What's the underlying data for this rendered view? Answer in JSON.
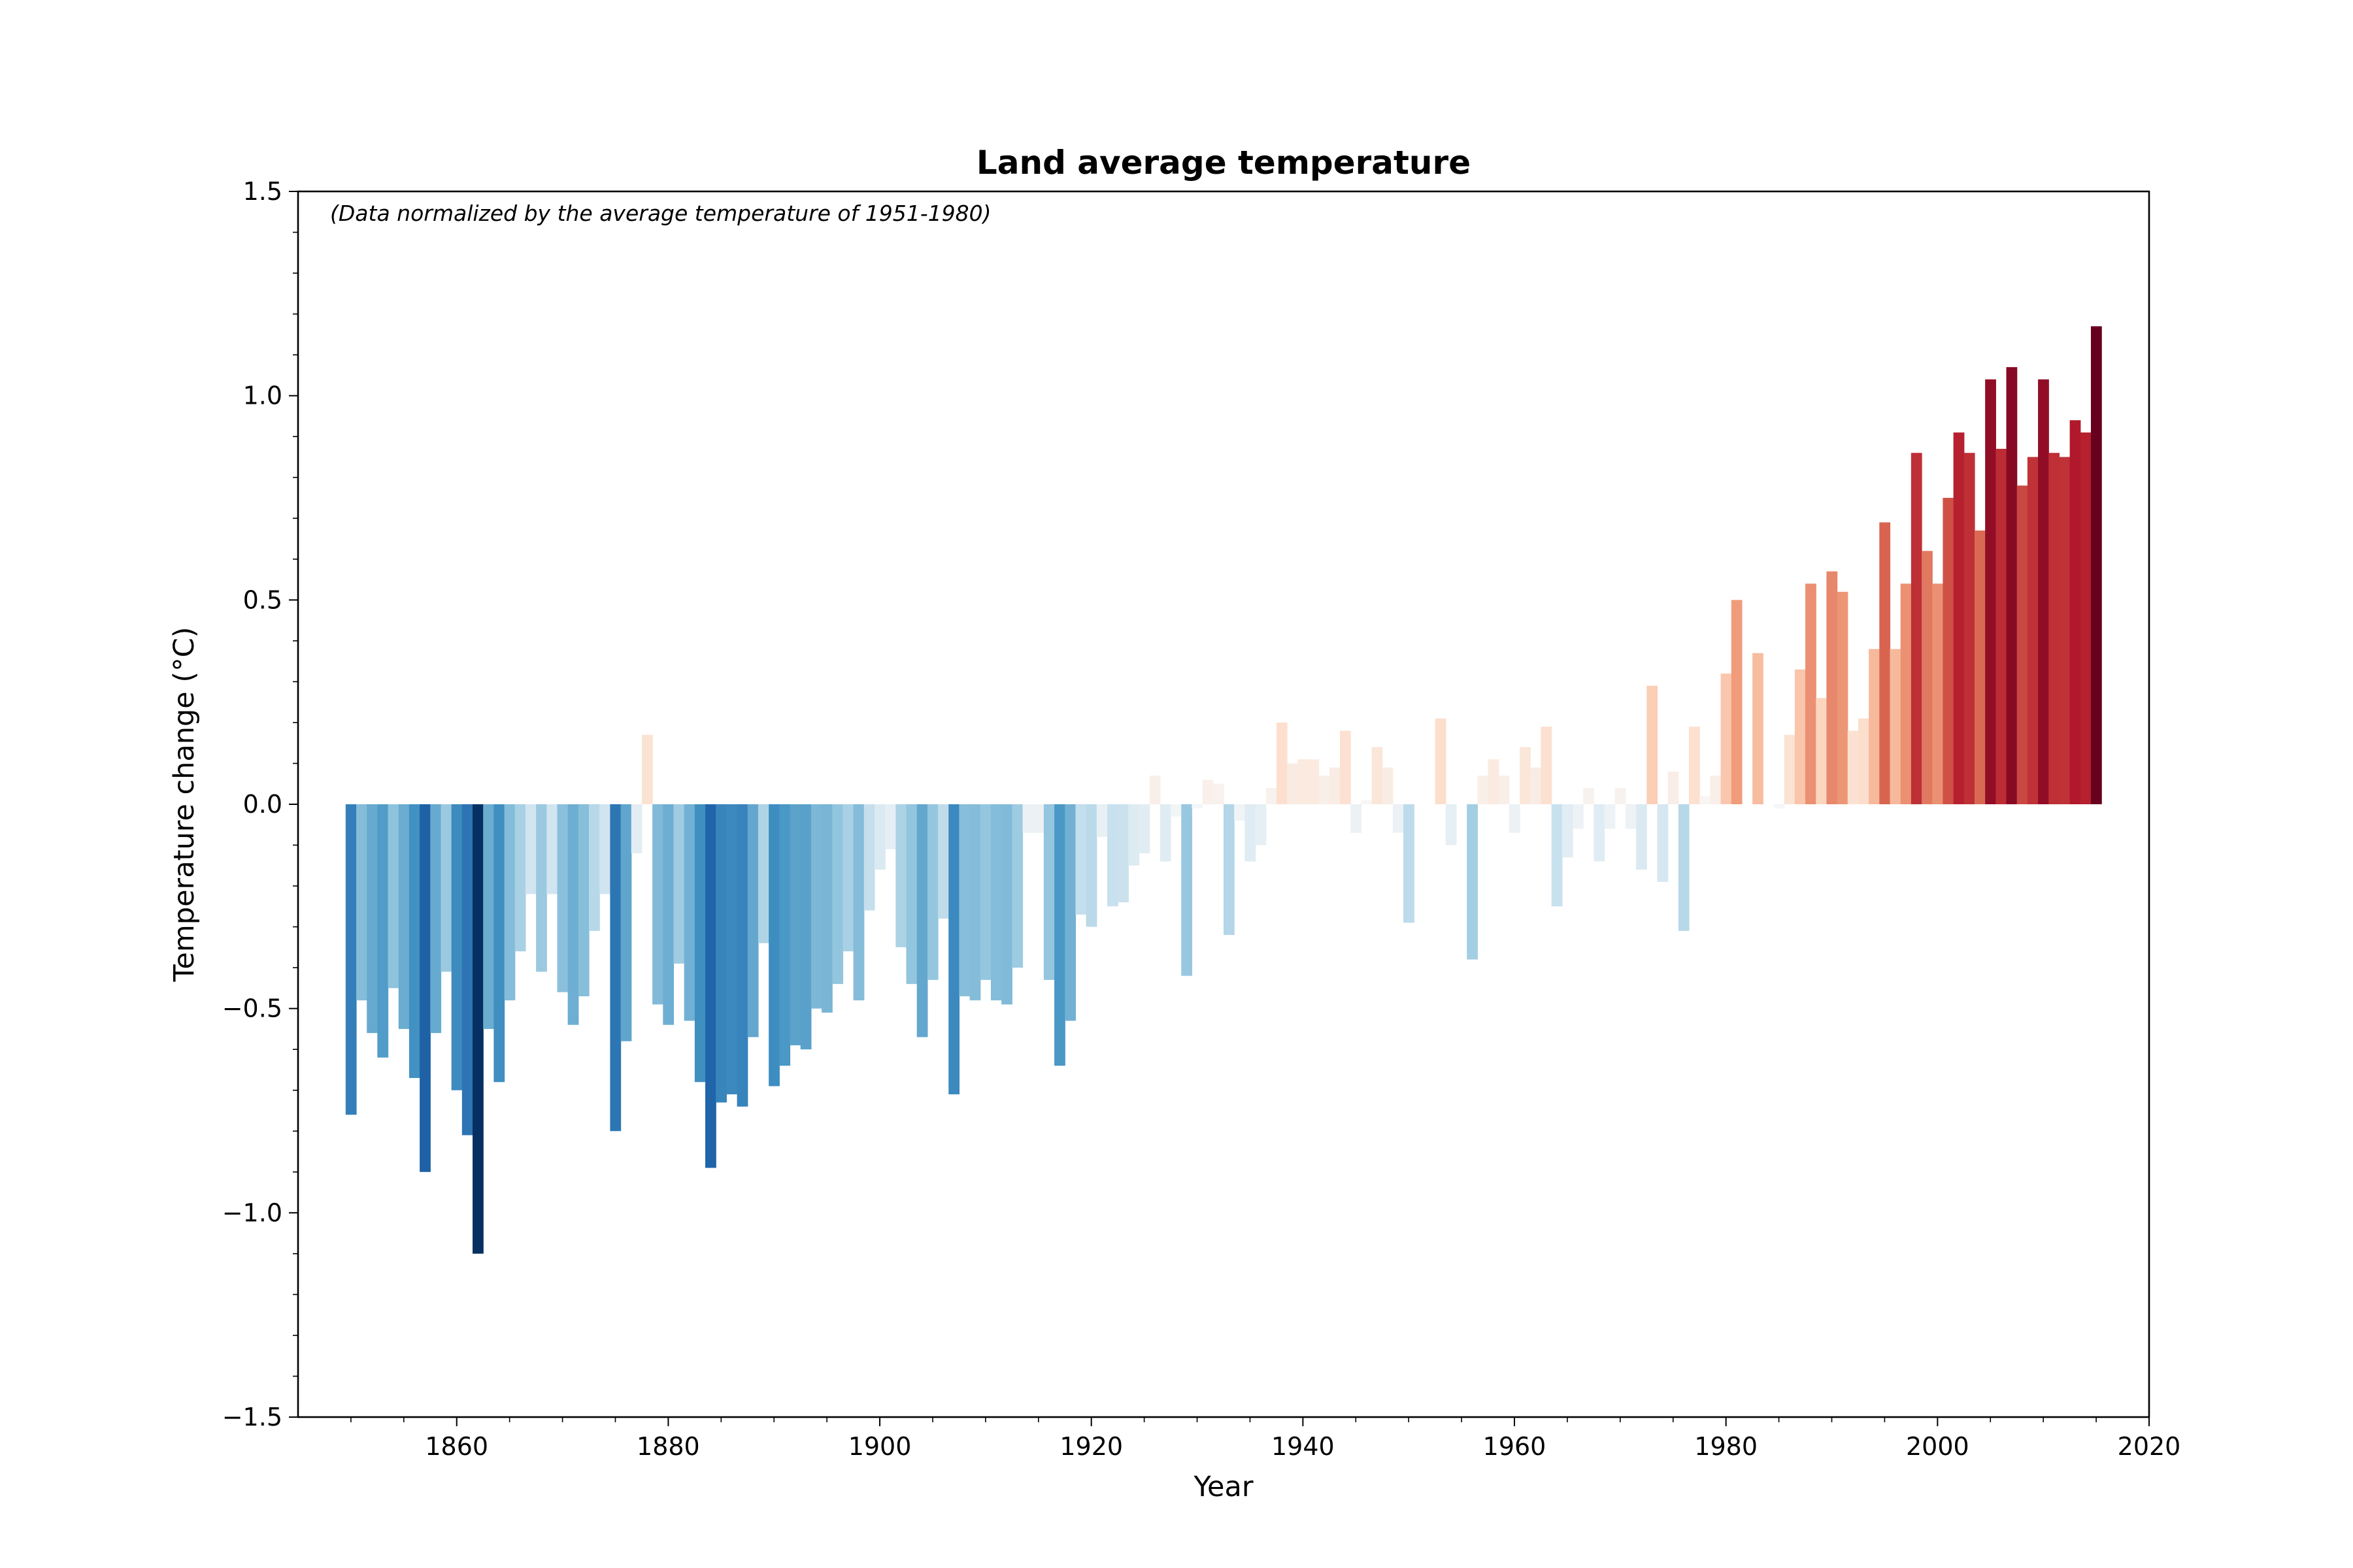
{
  "chart_data": {
    "type": "bar",
    "title": "Land average temperature",
    "annotation": "(Data normalized by the average temperature of 1951-1980)",
    "xlabel": "Year",
    "ylabel": "Temperature change (°C)",
    "xlim": [
      1845,
      2020
    ],
    "ylim": [
      -1.5,
      1.5
    ],
    "xticks": [
      1860,
      1880,
      1900,
      1920,
      1940,
      1960,
      1980,
      2000,
      2020
    ],
    "xtick_labels": [
      "1860",
      "1880",
      "1900",
      "1920",
      "1940",
      "1960",
      "1980",
      "2000",
      "2020"
    ],
    "yticks": [
      -1.5,
      -1.0,
      -0.5,
      0.0,
      0.5,
      1.0,
      1.5
    ],
    "ytick_labels": [
      "−1.5",
      "−1.0",
      "−0.5",
      "0.0",
      "0.5",
      "1.0",
      "1.5"
    ],
    "grid": false,
    "legend": "none",
    "colormap": "RdBu_r (blue = below average, red = above average)",
    "x": [
      1850,
      1851,
      1852,
      1853,
      1854,
      1855,
      1856,
      1857,
      1858,
      1859,
      1860,
      1861,
      1862,
      1863,
      1864,
      1865,
      1866,
      1867,
      1868,
      1869,
      1870,
      1871,
      1872,
      1873,
      1874,
      1875,
      1876,
      1877,
      1878,
      1879,
      1880,
      1881,
      1882,
      1883,
      1884,
      1885,
      1886,
      1887,
      1888,
      1889,
      1890,
      1891,
      1892,
      1893,
      1894,
      1895,
      1896,
      1897,
      1898,
      1899,
      1900,
      1901,
      1902,
      1903,
      1904,
      1905,
      1906,
      1907,
      1908,
      1909,
      1910,
      1911,
      1912,
      1913,
      1914,
      1915,
      1916,
      1917,
      1918,
      1919,
      1920,
      1921,
      1922,
      1923,
      1924,
      1925,
      1926,
      1927,
      1928,
      1929,
      1930,
      1931,
      1932,
      1933,
      1934,
      1935,
      1936,
      1937,
      1938,
      1939,
      1940,
      1941,
      1942,
      1943,
      1944,
      1945,
      1946,
      1947,
      1948,
      1949,
      1950,
      1951,
      1952,
      1953,
      1954,
      1955,
      1956,
      1957,
      1958,
      1959,
      1960,
      1961,
      1962,
      1963,
      1964,
      1965,
      1966,
      1967,
      1968,
      1969,
      1970,
      1971,
      1972,
      1973,
      1974,
      1975,
      1976,
      1977,
      1978,
      1979,
      1980,
      1981,
      1982,
      1983,
      1984,
      1985,
      1986,
      1987,
      1988,
      1989,
      1990,
      1991,
      1992,
      1993,
      1994,
      1995,
      1996,
      1997,
      1998,
      1999,
      2000,
      2001,
      2002,
      2003,
      2004,
      2005,
      2006,
      2007,
      2008,
      2009,
      2010,
      2011,
      2012,
      2013,
      2014,
      2015
    ],
    "values": [
      -0.76,
      -0.48,
      -0.56,
      -0.62,
      -0.45,
      -0.55,
      -0.67,
      -0.9,
      -0.56,
      -0.41,
      -0.7,
      -0.81,
      -1.1,
      -0.55,
      -0.68,
      -0.48,
      -0.36,
      -0.22,
      -0.41,
      -0.22,
      -0.46,
      -0.54,
      -0.47,
      -0.31,
      -0.22,
      -0.8,
      -0.58,
      -0.12,
      0.17,
      -0.49,
      -0.54,
      -0.39,
      -0.53,
      -0.68,
      -0.89,
      -0.73,
      -0.71,
      -0.74,
      -0.57,
      -0.34,
      -0.69,
      -0.64,
      -0.59,
      -0.6,
      -0.5,
      -0.51,
      -0.44,
      -0.36,
      -0.48,
      -0.26,
      -0.16,
      -0.11,
      -0.35,
      -0.44,
      -0.57,
      -0.43,
      -0.28,
      -0.71,
      -0.47,
      -0.48,
      -0.43,
      -0.48,
      -0.49,
      -0.4,
      -0.07,
      -0.07,
      -0.43,
      -0.64,
      -0.53,
      -0.27,
      -0.3,
      -0.08,
      -0.25,
      -0.24,
      -0.15,
      -0.12,
      0.07,
      -0.14,
      -0.03,
      -0.42,
      -0.01,
      0.06,
      0.05,
      -0.32,
      -0.04,
      -0.14,
      -0.1,
      0.04,
      0.2,
      0.1,
      0.11,
      0.11,
      0.07,
      0.09,
      0.18,
      -0.07,
      0.01,
      0.14,
      0.09,
      -0.07,
      -0.29,
      0.0,
      0.0,
      0.21,
      -0.1,
      0.0,
      -0.38,
      0.07,
      0.11,
      0.07,
      -0.07,
      0.14,
      0.09,
      0.19,
      -0.25,
      -0.13,
      -0.06,
      0.04,
      -0.14,
      -0.06,
      0.04,
      -0.06,
      -0.16,
      0.29,
      -0.19,
      0.08,
      -0.31,
      0.19,
      0.02,
      0.07,
      0.32,
      0.5,
      0.0,
      0.37,
      0.0,
      -0.01,
      0.17,
      0.33,
      0.54,
      0.26,
      0.57,
      0.52,
      0.18,
      0.21,
      0.38,
      0.69,
      0.38,
      0.54,
      0.86,
      0.62,
      0.54,
      0.75,
      0.91,
      0.86,
      0.67,
      1.04,
      0.87,
      1.07,
      0.78,
      0.85,
      1.04,
      0.86,
      0.85,
      0.94,
      0.91,
      1.17
    ]
  }
}
